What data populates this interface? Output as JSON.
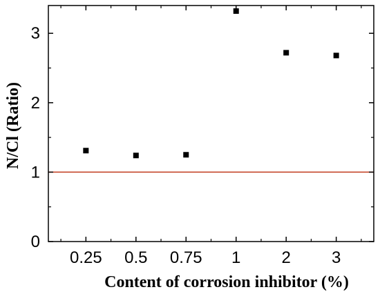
{
  "chart_data": {
    "type": "scatter",
    "title": "",
    "xlabel": "Content of corrosion inhibitor (%)",
    "ylabel": "N/Cl (Ratio)",
    "categories": [
      "0.25",
      "0.5",
      "0.75",
      "1",
      "2",
      "3"
    ],
    "series": [
      {
        "name": "",
        "values": [
          1.31,
          1.24,
          1.25,
          3.32,
          2.72,
          2.68
        ],
        "color": "#000000",
        "marker": "square"
      }
    ],
    "reference_line": {
      "y": 1,
      "color": "#c0391b"
    },
    "ylim": [
      0,
      3.4
    ],
    "yticks": [
      "0",
      "1",
      "2",
      "3"
    ],
    "grid": false,
    "legend": "none"
  }
}
